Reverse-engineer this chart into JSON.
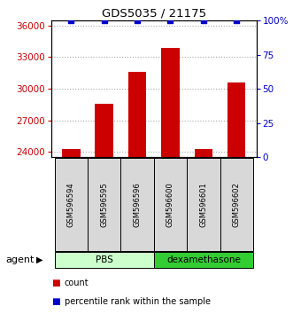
{
  "title": "GDS5035 / 21175",
  "samples": [
    "GSM596594",
    "GSM596595",
    "GSM596596",
    "GSM596600",
    "GSM596601",
    "GSM596602"
  ],
  "counts": [
    24300,
    28600,
    31600,
    33900,
    24300,
    30600
  ],
  "percentile_ranks": [
    100,
    100,
    100,
    100,
    100,
    100
  ],
  "ylim_left": [
    23500,
    36500
  ],
  "ylim_right": [
    0,
    100
  ],
  "yticks_left": [
    24000,
    27000,
    30000,
    33000,
    36000
  ],
  "yticks_right": [
    0,
    25,
    50,
    75,
    100
  ],
  "ytick_labels_right": [
    "0",
    "25",
    "50",
    "75",
    "100%"
  ],
  "bar_color": "#cc0000",
  "dot_color": "#0000cc",
  "bar_width": 0.55,
  "pbs_color_light": "#ccffcc",
  "pbs_color_dark": "#44cc44",
  "dex_color": "#33cc33",
  "sample_box_color": "#d8d8d8",
  "legend_items": [
    {
      "label": "count",
      "color": "#cc0000"
    },
    {
      "label": "percentile rank within the sample",
      "color": "#0000cc"
    }
  ],
  "group_labels": [
    "PBS",
    "dexamethasone"
  ],
  "agent_label": "agent"
}
